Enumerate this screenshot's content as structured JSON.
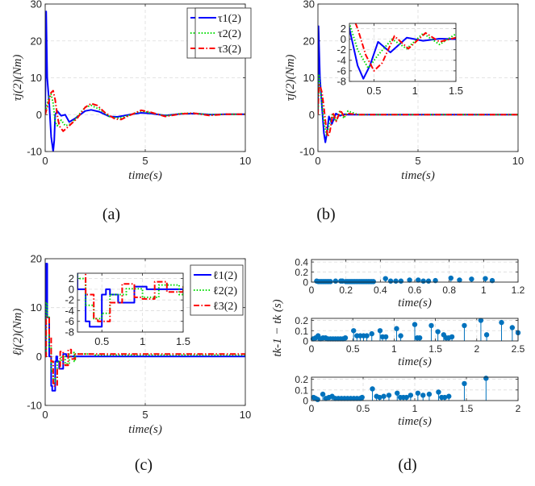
{
  "chart_data": [
    {
      "id": "a",
      "type": "line",
      "caption": "(a)",
      "xlabel": "time(s)",
      "ylabel": "τj(2)(Nm)",
      "xlim": [
        0,
        10
      ],
      "ylim": [
        -10,
        30
      ],
      "xticks": [
        "0",
        "5",
        "10"
      ],
      "yticks": [
        "-10",
        "0",
        "10",
        "20",
        "30"
      ],
      "grid": true,
      "legend_position": "top-right",
      "series": [
        {
          "name": "τ1(2)",
          "color": "#0000ff",
          "style": "solid",
          "x": [
            0,
            0.05,
            0.1,
            0.2,
            0.3,
            0.4,
            0.45,
            0.5,
            0.6,
            0.8,
            1.0,
            1.2,
            1.5,
            2.0,
            2.3,
            2.7,
            3.2,
            3.6,
            4.2,
            4.8,
            5.3,
            6.0,
            6.8,
            7.5,
            8.3,
            9.0,
            10
          ],
          "y": [
            0,
            28,
            10,
            3,
            -6,
            -10,
            -7,
            0,
            1,
            -0.3,
            0,
            -2,
            -1,
            1,
            1.3,
            0.8,
            -0.5,
            -0.6,
            0,
            0.5,
            0.3,
            -0.2,
            0.2,
            0.3,
            0,
            0.1,
            0.1
          ]
        },
        {
          "name": "τ2(2)",
          "color": "#00dd00",
          "style": "dotted",
          "x": [
            0,
            0.1,
            0.2,
            0.3,
            0.4,
            0.5,
            0.6,
            0.8,
            1.0,
            1.3,
            1.6,
            2.0,
            2.3,
            2.7,
            3.2,
            3.7,
            4.3,
            4.8,
            5.3,
            6.0,
            6.8,
            7.4,
            8.2,
            9.0,
            10
          ],
          "y": [
            0,
            3,
            5,
            5.5,
            3,
            -2,
            -3,
            -1.5,
            -3,
            -2.5,
            -0.5,
            2,
            2.5,
            1.5,
            -0.5,
            -1,
            0,
            1,
            0.5,
            -0.3,
            0.3,
            0.4,
            0,
            0.1,
            0.1
          ]
        },
        {
          "name": "τ3(2)",
          "color": "#ff0000",
          "style": "dashdot",
          "x": [
            0,
            0.1,
            0.2,
            0.3,
            0.4,
            0.5,
            0.6,
            0.7,
            0.9,
            1.2,
            1.6,
            2.0,
            2.3,
            2.6,
            3.0,
            3.5,
            3.8,
            4.3,
            4.8,
            5.3,
            6.0,
            6.8,
            7.4,
            8.2,
            9.0,
            10
          ],
          "y": [
            0,
            2,
            4,
            6,
            6.5,
            4,
            0,
            -3,
            -4.5,
            -3,
            -1,
            2,
            3,
            2.5,
            0.5,
            -1.2,
            -1.3,
            0,
            1.2,
            0.6,
            -0.5,
            0.2,
            0.4,
            -0.2,
            0.1,
            0.1
          ]
        }
      ]
    },
    {
      "id": "b",
      "type": "line",
      "caption": "(b)",
      "xlabel": "time(s)",
      "ylabel": "τj(2)(Nm)",
      "xlim": [
        0,
        10
      ],
      "ylim": [
        -10,
        30
      ],
      "xticks": [
        "0",
        "5",
        "10"
      ],
      "yticks": [
        "-10",
        "0",
        "10",
        "20",
        "30"
      ],
      "grid": true,
      "legend_position": "top-right",
      "series": [
        {
          "name": "τ1(2)",
          "color": "#0000ff",
          "style": "solid",
          "x": [
            0,
            0.03,
            0.1,
            0.2,
            0.3,
            0.37,
            0.45,
            0.55,
            0.7,
            0.9,
            1.1,
            1.3,
            1.5,
            2,
            10
          ],
          "y": [
            0,
            24,
            10,
            2,
            -5,
            -7.5,
            -5,
            -0.5,
            -2.5,
            0.3,
            -0.3,
            0.1,
            0,
            0,
            0
          ]
        },
        {
          "name": "τ2(2)",
          "color": "#00dd00",
          "style": "dotted",
          "x": [
            0,
            0.05,
            0.1,
            0.2,
            0.3,
            0.43,
            0.55,
            0.72,
            0.9,
            1.1,
            1.3,
            1.5,
            2,
            10
          ],
          "y": [
            0,
            11,
            8,
            3,
            -2,
            -5.5,
            -3,
            0,
            -1.8,
            1.1,
            -1,
            1,
            0,
            0
          ]
        },
        {
          "name": "τ3(2)",
          "color": "#ff0000",
          "style": "dashdot",
          "x": [
            0,
            0.05,
            0.1,
            0.2,
            0.3,
            0.4,
            0.5,
            0.6,
            0.75,
            0.92,
            1.13,
            1.3,
            1.5,
            2,
            10
          ],
          "y": [
            0,
            8,
            8,
            6,
            2,
            -3,
            -6,
            -4.5,
            0.6,
            -1.8,
            1.2,
            -0.5,
            0.3,
            0,
            0
          ]
        }
      ],
      "inset": {
        "xlim": [
          0.2,
          1.5
        ],
        "ylim": [
          -8,
          3
        ],
        "xticks": [
          "0.5",
          "1",
          "1.5"
        ],
        "yticks": [
          "2",
          "0",
          "-2",
          "-4",
          "-6",
          "-8"
        ]
      }
    },
    {
      "id": "c",
      "type": "line",
      "caption": "(c)",
      "xlabel": "time(s)",
      "ylabel": "ℓj(2)(Nm)",
      "xlim": [
        0,
        10
      ],
      "ylim": [
        -10,
        20
      ],
      "xticks": [
        "0",
        "5",
        "10"
      ],
      "yticks": [
        "-10",
        "0",
        "10",
        "20"
      ],
      "grid": true,
      "legend_position": "top-right",
      "series": [
        {
          "name": "ℓ1(2)",
          "color": "#0000ff",
          "style": "solid",
          "step": true,
          "x": [
            0,
            0.03,
            0.1,
            0.2,
            0.3,
            0.35,
            0.42,
            0.5,
            0.55,
            0.6,
            0.7,
            0.8,
            0.9,
            1.0,
            1.05,
            1.5,
            10
          ],
          "y": [
            0,
            19,
            8,
            0,
            -6,
            -7,
            -7,
            -1,
            0,
            -1,
            -2.5,
            -2.5,
            0.5,
            0.5,
            0,
            0,
            0
          ]
        },
        {
          "name": "ℓ2(2)",
          "color": "#00dd00",
          "style": "dotted",
          "step": true,
          "x": [
            0,
            0.05,
            0.1,
            0.2,
            0.3,
            0.4,
            0.5,
            0.6,
            0.8,
            1.0,
            1.2,
            1.3,
            1.45,
            1.5,
            2.3,
            2.5,
            10
          ],
          "y": [
            0,
            11,
            8,
            2,
            -3,
            -5.5,
            -4.5,
            -1,
            0.1,
            -1.5,
            0.8,
            0.8,
            -1,
            0.5,
            0.5,
            0.3,
            0.3
          ]
        },
        {
          "name": "ℓ3(2)",
          "color": "#ff0000",
          "style": "dashdot",
          "step": true,
          "x": [
            0,
            0.05,
            0.1,
            0.2,
            0.3,
            0.4,
            0.45,
            0.55,
            0.6,
            0.75,
            0.9,
            1.0,
            1.15,
            1.3,
            1.45,
            1.5,
            10
          ],
          "y": [
            0,
            8,
            8,
            4,
            -1,
            -5.5,
            -6,
            -6,
            -2.5,
            1,
            -1.5,
            -1.8,
            1.4,
            -0.5,
            -0.5,
            0.5,
            0.3
          ]
        }
      ],
      "inset": {
        "xlim": [
          0.2,
          1.5
        ],
        "ylim": [
          -8,
          3
        ],
        "xticks": [
          "0.5",
          "1",
          "1.5"
        ],
        "yticks": [
          "2",
          "0",
          "-2",
          "-4",
          "-6",
          "-8"
        ]
      }
    },
    {
      "id": "d",
      "type": "stem",
      "caption": "(d)",
      "ylabel": "tk-1 − tk (s)",
      "color": "#0072bd",
      "subplots": [
        {
          "xlabel": "time(s)",
          "xlim": [
            0,
            1.2
          ],
          "ylim": [
            0,
            0.45
          ],
          "xticks": [
            "0",
            "0.2",
            "0.4",
            "0.6",
            "0.8",
            "1",
            "1.2"
          ],
          "yticks": [
            "0",
            "0.2",
            "0.4"
          ],
          "x": [
            0.03,
            0.04,
            0.05,
            0.06,
            0.07,
            0.08,
            0.09,
            0.1,
            0.11,
            0.14,
            0.17,
            0.18,
            0.2,
            0.21,
            0.22,
            0.23,
            0.24,
            0.25,
            0.26,
            0.27,
            0.28,
            0.29,
            0.3,
            0.31,
            0.32,
            0.33,
            0.34,
            0.35,
            0.36,
            0.43,
            0.46,
            0.49,
            0.52,
            0.57,
            0.62,
            0.65,
            0.68,
            0.72,
            0.81,
            0.86,
            0.93,
            1.01,
            1.05
          ],
          "y": [
            0.02,
            0.01,
            0.01,
            0.01,
            0.01,
            0.01,
            0.01,
            0.01,
            0.01,
            0.02,
            0.02,
            0.02,
            0.01,
            0.01,
            0.01,
            0.01,
            0.01,
            0.01,
            0.01,
            0.01,
            0.01,
            0.01,
            0.01,
            0.01,
            0.01,
            0.01,
            0.01,
            0.01,
            0.01,
            0.07,
            0.02,
            0.02,
            0.02,
            0.04,
            0.04,
            0.02,
            0.02,
            0.03,
            0.08,
            0.04,
            0.06,
            0.07,
            0.03
          ]
        },
        {
          "xlabel": "time(s)",
          "xlim": [
            0,
            2.5
          ],
          "ylim": [
            0,
            0.22
          ],
          "xticks": [
            "0",
            "0.5",
            "1",
            "1.5",
            "2",
            "2.5"
          ],
          "yticks": [
            "0",
            "0.1",
            "0.2"
          ],
          "x": [
            0.02,
            0.05,
            0.08,
            0.11,
            0.14,
            0.17,
            0.2,
            0.23,
            0.26,
            0.29,
            0.32,
            0.35,
            0.38,
            0.41,
            0.51,
            0.55,
            0.59,
            0.63,
            0.67,
            0.73,
            0.83,
            0.86,
            0.9,
            1.03,
            1.08,
            1.25,
            1.28,
            1.31,
            1.45,
            1.53,
            1.6,
            1.63,
            1.66,
            1.7,
            1.85,
            2.05,
            2.12,
            2.3,
            2.43,
            2.5
          ],
          "y": [
            0.02,
            0.03,
            0.05,
            0.02,
            0.03,
            0.03,
            0.02,
            0.02,
            0.02,
            0.02,
            0.02,
            0.02,
            0.02,
            0.03,
            0.1,
            0.05,
            0.05,
            0.05,
            0.05,
            0.07,
            0.1,
            0.04,
            0.04,
            0.12,
            0.05,
            0.16,
            0.03,
            0.03,
            0.15,
            0.09,
            0.06,
            0.03,
            0.03,
            0.04,
            0.15,
            0.2,
            0.06,
            0.18,
            0.13,
            0.08
          ]
        },
        {
          "xlabel": "time(s)",
          "xlim": [
            0,
            2
          ],
          "ylim": [
            0,
            0.22
          ],
          "xticks": [
            "0",
            "0.5",
            "1",
            "1.5",
            "2"
          ],
          "yticks": [
            "0",
            "0.1",
            "0.2"
          ],
          "x": [
            0.02,
            0.04,
            0.06,
            0.11,
            0.14,
            0.17,
            0.2,
            0.23,
            0.26,
            0.29,
            0.32,
            0.35,
            0.38,
            0.41,
            0.44,
            0.47,
            0.49,
            0.59,
            0.63,
            0.66,
            0.7,
            0.75,
            0.83,
            0.86,
            0.89,
            0.92,
            0.96,
            1.03,
            1.08,
            1.14,
            1.23,
            1.26,
            1.29,
            1.33,
            1.48,
            1.69
          ],
          "y": [
            0.03,
            0.02,
            0.01,
            0.06,
            0.02,
            0.03,
            0.04,
            0.02,
            0.02,
            0.02,
            0.02,
            0.02,
            0.02,
            0.02,
            0.02,
            0.02,
            0.03,
            0.11,
            0.04,
            0.03,
            0.04,
            0.05,
            0.07,
            0.03,
            0.03,
            0.03,
            0.05,
            0.07,
            0.05,
            0.06,
            0.08,
            0.03,
            0.03,
            0.04,
            0.16,
            0.21
          ]
        }
      ]
    }
  ]
}
